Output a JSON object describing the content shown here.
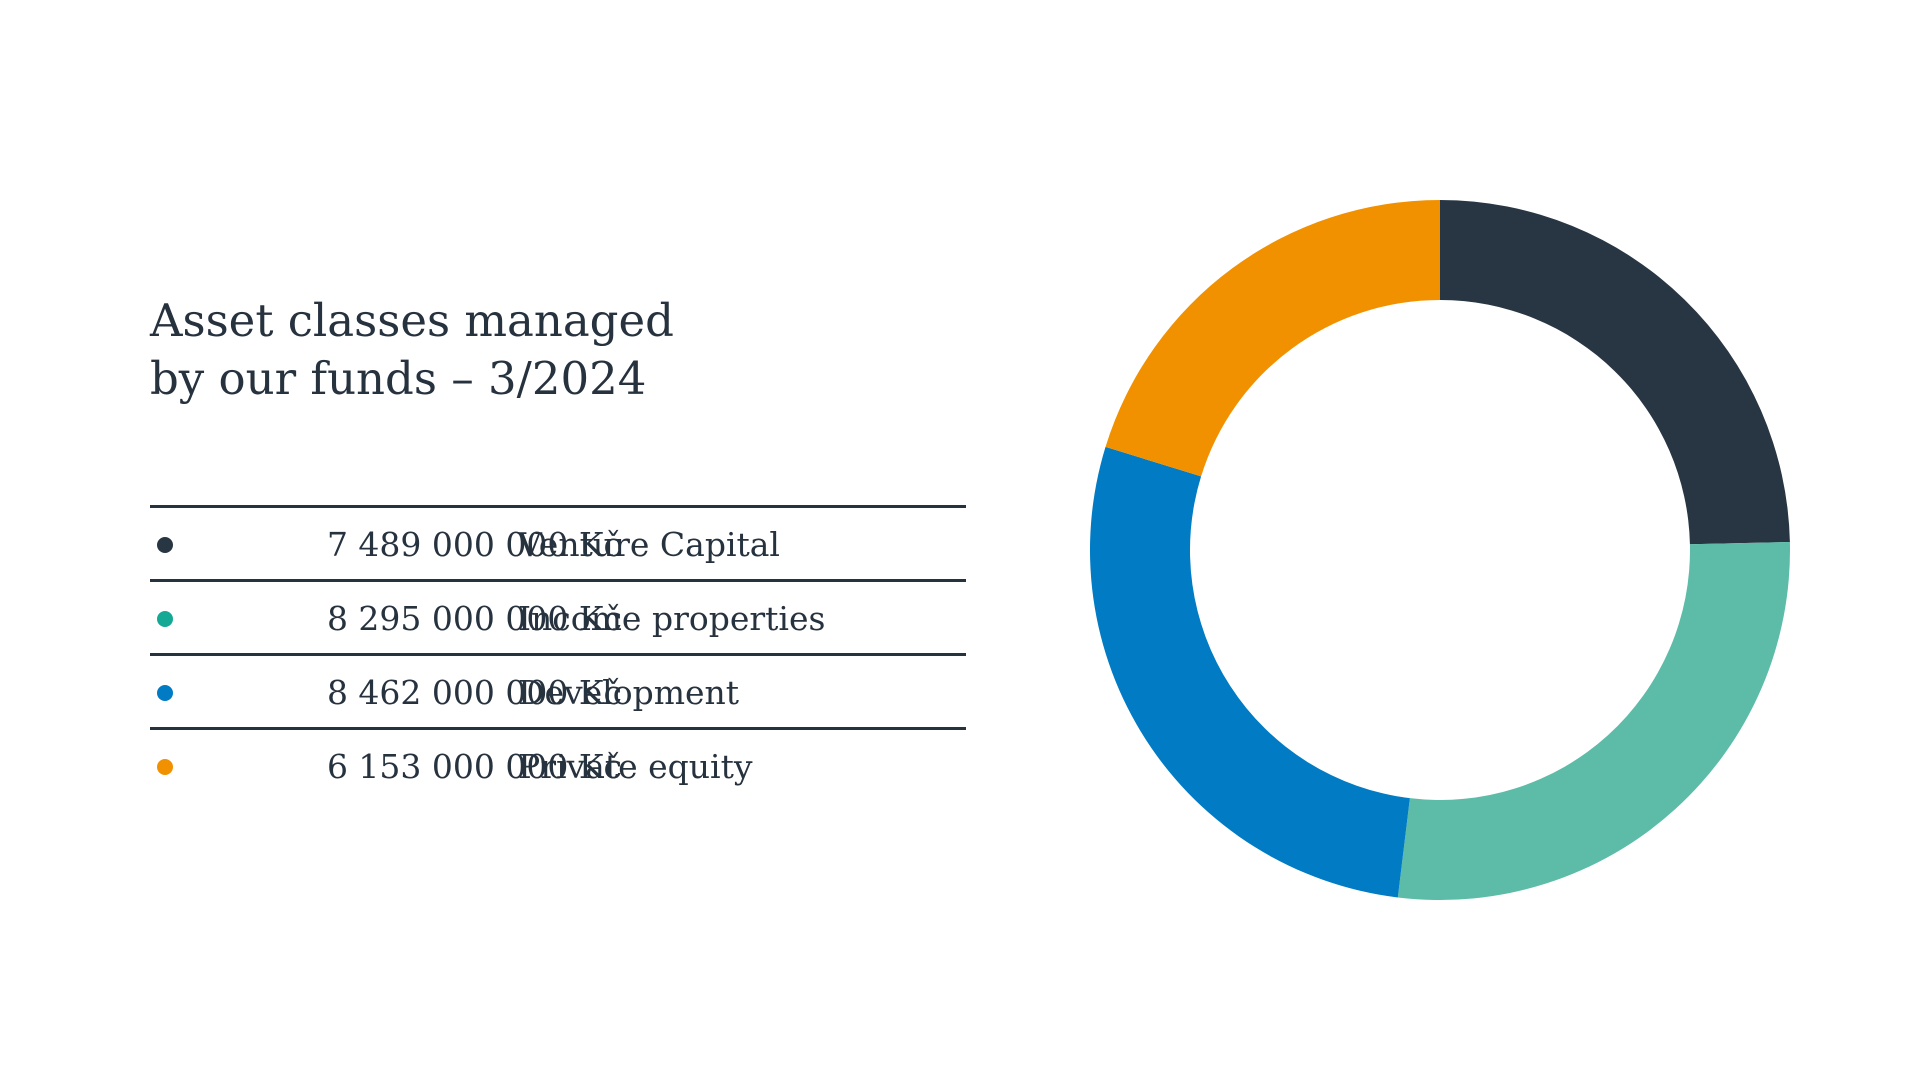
{
  "chart_data": {
    "type": "pie",
    "style": "donut",
    "title": "Asset classes managed by our funds – 3/2024",
    "title_lines": [
      "Asset classes managed",
      "by our funds – 3/2024"
    ],
    "unit": "Kč",
    "categories": [
      "Venture Capital",
      "Income properties",
      "Development",
      "Private equity"
    ],
    "values": [
      7489000000,
      8295000000,
      8462000000,
      6153000000
    ],
    "value_labels": [
      "7 489 000 000 Kč",
      "8 295 000 000 Kč",
      "8 462 000 000 Kč",
      "6 153 000 000 Kč"
    ],
    "colors": [
      "#283643",
      "#5cbca8",
      "#007bc4",
      "#f29100"
    ],
    "legend_dot_colors": [
      "#283643",
      "#14a994",
      "#007bc4",
      "#f29100"
    ],
    "start_angle_deg": 0,
    "direction": "clockwise",
    "legend_placement": "left"
  }
}
